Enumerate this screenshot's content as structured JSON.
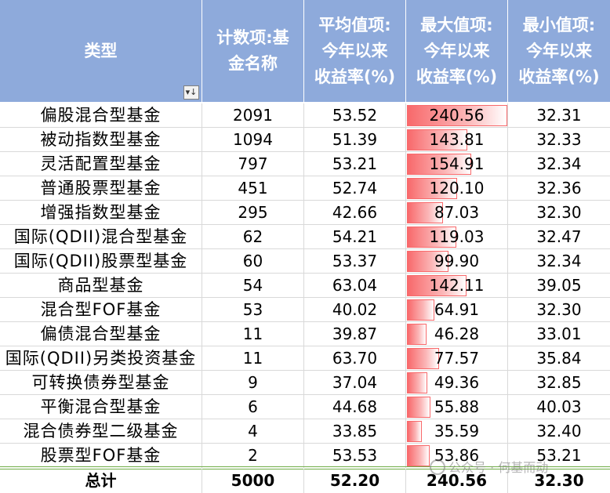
{
  "headers": {
    "type": "类型",
    "count": [
      "计数项:基",
      "金名称"
    ],
    "avg": [
      "平均值项:",
      "今年以来",
      "收益率(%)"
    ],
    "max": [
      "最大值项:",
      "今年以来",
      "收益率(%)"
    ],
    "min": [
      "最小值项:",
      "今年以来",
      "收益率(%)"
    ],
    "filter_icon": "filter-dropdown-icon",
    "filter_glyph": "▾↓"
  },
  "rows": [
    {
      "type": "偏股混合型基金",
      "count": "2091",
      "avg": "53.52",
      "max": "240.56",
      "min": "32.31",
      "max_value": 240.56
    },
    {
      "type": "被动指数型基金",
      "count": "1094",
      "avg": "51.39",
      "max": "143.81",
      "min": "32.33",
      "max_value": 143.81
    },
    {
      "type": "灵活配置型基金",
      "count": "797",
      "avg": "53.21",
      "max": "154.91",
      "min": "32.34",
      "max_value": 154.91
    },
    {
      "type": "普通股票型基金",
      "count": "451",
      "avg": "52.74",
      "max": "120.10",
      "min": "32.36",
      "max_value": 120.1
    },
    {
      "type": "增强指数型基金",
      "count": "295",
      "avg": "42.66",
      "max": "87.03",
      "min": "32.30",
      "max_value": 87.03
    },
    {
      "type": "国际(QDII)混合型基金",
      "count": "62",
      "avg": "54.21",
      "max": "119.03",
      "min": "32.47",
      "max_value": 119.03
    },
    {
      "type": "国际(QDII)股票型基金",
      "count": "60",
      "avg": "53.37",
      "max": "99.90",
      "min": "32.34",
      "max_value": 99.9
    },
    {
      "type": "商品型基金",
      "count": "54",
      "avg": "63.04",
      "max": "142.11",
      "min": "39.05",
      "max_value": 142.11
    },
    {
      "type": "混合型FOF基金",
      "count": "53",
      "avg": "40.02",
      "max": "64.91",
      "min": "32.30",
      "max_value": 64.91
    },
    {
      "type": "偏债混合型基金",
      "count": "11",
      "avg": "39.87",
      "max": "46.28",
      "min": "33.01",
      "max_value": 46.28
    },
    {
      "type": "国际(QDII)另类投资基金",
      "count": "11",
      "avg": "63.70",
      "max": "77.57",
      "min": "35.84",
      "max_value": 77.57
    },
    {
      "type": "可转换债券型基金",
      "count": "9",
      "avg": "37.04",
      "max": "49.36",
      "min": "32.85",
      "max_value": 49.36
    },
    {
      "type": "平衡混合型基金",
      "count": "6",
      "avg": "44.68",
      "max": "55.88",
      "min": "40.03",
      "max_value": 55.88
    },
    {
      "type": "混合债券型二级基金",
      "count": "4",
      "avg": "33.85",
      "max": "35.59",
      "min": "32.40",
      "max_value": 35.59
    },
    {
      "type": "股票型FOF基金",
      "count": "2",
      "avg": "53.53",
      "max": "53.86",
      "min": "53.21",
      "max_value": 53.86
    }
  ],
  "total": {
    "type": "总计",
    "count": "5000",
    "avg": "52.20",
    "max": "240.56",
    "min": "32.30"
  },
  "data_bar_max": 240.56,
  "colors": {
    "header_bg": "#8EAADB",
    "bar": "#F8696B",
    "total_border": "#70AD47"
  },
  "watermark": {
    "text": "公众号 · 何基而动",
    "icon": "wechat-icon"
  }
}
